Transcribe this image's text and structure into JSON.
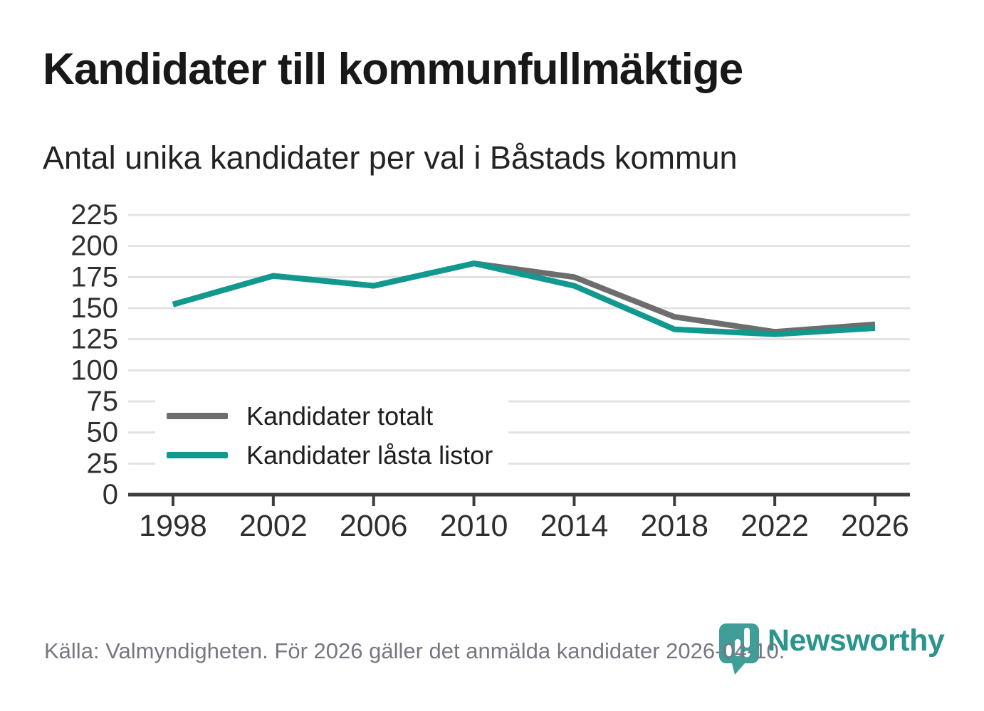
{
  "title": "Kandidater till kommunfullmäktige",
  "subtitle": "Antal unika kandidater per val i Båstads kommun",
  "legend": {
    "items": [
      {
        "label": "Kandidater totalt"
      },
      {
        "label": "Kandidater låsta listor"
      }
    ]
  },
  "footer": {
    "source_text": "Källa: Valmyndigheten. För 2026 gäller det anmälda kandidater 2026-04-10."
  },
  "branding": {
    "logo_icon": "newsworthy-pin-barchart-icon",
    "logo_text": "Newsworthy",
    "logo_text_color": "#2b948d",
    "logo_pin_color": "#3f9e97"
  },
  "chart_data": {
    "type": "line",
    "title": "Kandidater till kommunfullmäktige",
    "subtitle": "Antal unika kandidater per val i Båstads kommun",
    "x": [
      1998,
      2002,
      2006,
      2010,
      2014,
      2018,
      2022,
      2026
    ],
    "series": [
      {
        "name": "Kandidater totalt",
        "color": "#6d6d6d",
        "values": [
          153,
          176,
          168,
          186,
          175,
          143,
          131,
          137
        ]
      },
      {
        "name": "Kandidater låsta listor",
        "color": "#11998F",
        "values": [
          153,
          176,
          168,
          186,
          168,
          133,
          129,
          134
        ]
      }
    ],
    "xlabel": "",
    "ylabel": "",
    "ylim": [
      0,
      225
    ],
    "ytick_step": 25,
    "grid": "horizontal",
    "legend_position": "inside-left-middle",
    "colors": {
      "gridline": "#e2e2e2",
      "axis": "#3d3d3d",
      "tick_label": "#2f2f2f"
    }
  }
}
